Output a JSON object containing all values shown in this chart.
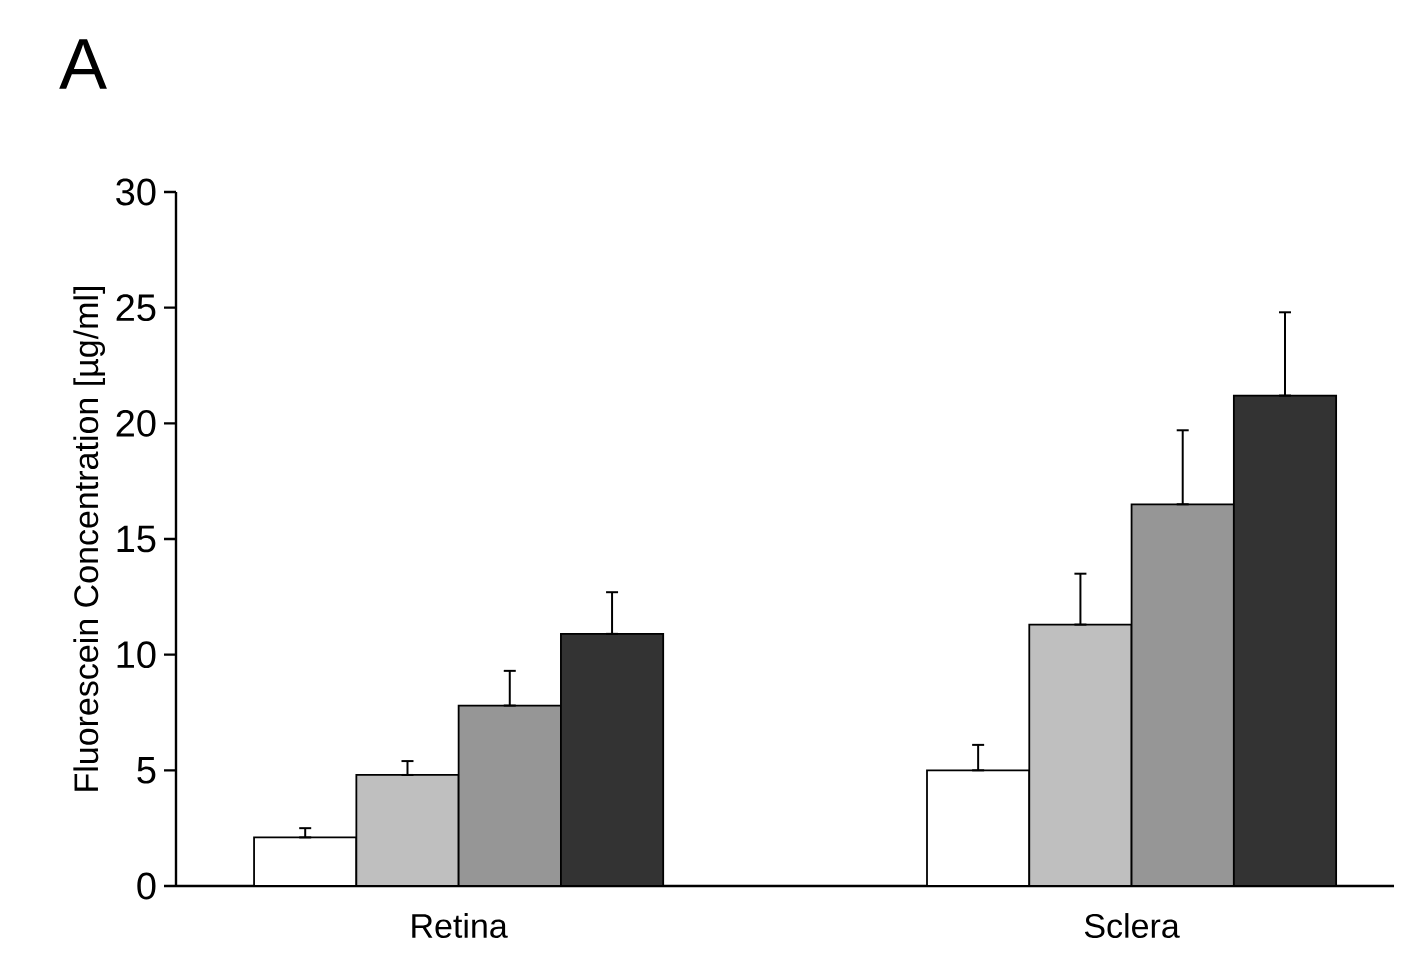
{
  "chart_data": {
    "type": "bar",
    "title": "A",
    "ylabel": "Fluorescein Concentration [µg/ml]",
    "categories": [
      "Retina",
      "Sclera"
    ],
    "series": [
      {
        "color": "#ffffff",
        "values": [
          2.1,
          5.0
        ],
        "errors": [
          [
            2.1,
            2.5
          ],
          [
            5.0,
            6.1
          ]
        ]
      },
      {
        "color": "#bfbfbf",
        "values": [
          4.8,
          11.3
        ],
        "errors": [
          [
            4.8,
            5.4
          ],
          [
            11.3,
            13.5
          ]
        ]
      },
      {
        "color": "#969696",
        "values": [
          7.8,
          16.5
        ],
        "errors": [
          [
            7.8,
            9.3
          ],
          [
            16.5,
            19.7
          ]
        ]
      },
      {
        "color": "#333333",
        "values": [
          10.9,
          21.2
        ],
        "errors": [
          [
            10.9,
            12.7
          ],
          [
            21.2,
            24.8
          ]
        ]
      }
    ],
    "ylim": [
      0,
      30
    ],
    "yticks": [
      0,
      5,
      10,
      15,
      20,
      25,
      30
    ],
    "grid": false
  }
}
